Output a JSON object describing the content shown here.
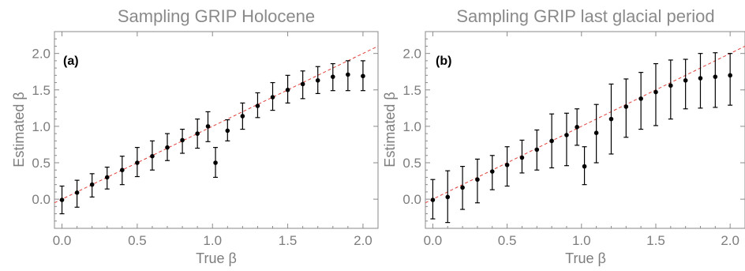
{
  "chart_data": [
    {
      "type": "scatter",
      "title": "Sampling GRIP Holocene",
      "panel_label": "(a)",
      "xlabel": "True β",
      "ylabel": "Estimated β",
      "xlim": [
        -0.05,
        2.1
      ],
      "ylim": [
        -0.4,
        2.3
      ],
      "xticks": [
        "0.0",
        "0.5",
        "1.0",
        "1.5",
        "2.0"
      ],
      "yticks": [
        "0.0",
        "0.5",
        "1.0",
        "1.5",
        "2.0"
      ],
      "reference_line": {
        "slope": 1,
        "intercept": 0,
        "color": "#e0413a",
        "style": "dashed"
      },
      "grid": false,
      "points": [
        {
          "x": 0.0,
          "y": -0.01,
          "lo": -0.2,
          "hi": 0.18
        },
        {
          "x": 0.1,
          "y": 0.09,
          "lo": -0.11,
          "hi": 0.26
        },
        {
          "x": 0.2,
          "y": 0.2,
          "lo": 0.03,
          "hi": 0.35
        },
        {
          "x": 0.3,
          "y": 0.3,
          "lo": 0.14,
          "hi": 0.44
        },
        {
          "x": 0.4,
          "y": 0.4,
          "lo": 0.2,
          "hi": 0.59
        },
        {
          "x": 0.5,
          "y": 0.5,
          "lo": 0.31,
          "hi": 0.71
        },
        {
          "x": 0.6,
          "y": 0.59,
          "lo": 0.4,
          "hi": 0.8
        },
        {
          "x": 0.7,
          "y": 0.71,
          "lo": 0.53,
          "hi": 0.9
        },
        {
          "x": 0.8,
          "y": 0.81,
          "lo": 0.63,
          "hi": 0.96
        },
        {
          "x": 0.9,
          "y": 0.9,
          "lo": 0.7,
          "hi": 1.1
        },
        {
          "x": 0.97,
          "y": 1.0,
          "lo": 0.79,
          "hi": 1.2
        },
        {
          "x": 1.02,
          "y": 0.5,
          "lo": 0.3,
          "hi": 0.71
        },
        {
          "x": 1.1,
          "y": 0.94,
          "lo": 0.8,
          "hi": 1.09
        },
        {
          "x": 1.2,
          "y": 1.14,
          "lo": 0.96,
          "hi": 1.32
        },
        {
          "x": 1.3,
          "y": 1.28,
          "lo": 1.12,
          "hi": 1.46
        },
        {
          "x": 1.4,
          "y": 1.4,
          "lo": 1.22,
          "hi": 1.6
        },
        {
          "x": 1.5,
          "y": 1.5,
          "lo": 1.32,
          "hi": 1.7
        },
        {
          "x": 1.6,
          "y": 1.58,
          "lo": 1.38,
          "hi": 1.76
        },
        {
          "x": 1.7,
          "y": 1.63,
          "lo": 1.45,
          "hi": 1.82
        },
        {
          "x": 1.8,
          "y": 1.68,
          "lo": 1.49,
          "hi": 1.86
        },
        {
          "x": 1.9,
          "y": 1.71,
          "lo": 1.49,
          "hi": 1.9
        },
        {
          "x": 2.0,
          "y": 1.69,
          "lo": 1.49,
          "hi": 1.9
        }
      ]
    },
    {
      "type": "scatter",
      "title": "Sampling GRIP last glacial period",
      "panel_label": "(b)",
      "xlabel": "True β",
      "ylabel": "Estimated β",
      "xlim": [
        -0.05,
        2.1
      ],
      "ylim": [
        -0.4,
        2.3
      ],
      "xticks": [
        "0.0",
        "0.5",
        "1.0",
        "1.5",
        "2.0"
      ],
      "yticks": [
        "0.0",
        "0.5",
        "1.0",
        "1.5",
        "2.0"
      ],
      "reference_line": {
        "slope": 1,
        "intercept": 0,
        "color": "#e0413a",
        "style": "dashed"
      },
      "grid": false,
      "points": [
        {
          "x": 0.0,
          "y": -0.01,
          "lo": -0.27,
          "hi": 0.27
        },
        {
          "x": 0.1,
          "y": 0.03,
          "lo": -0.32,
          "hi": 0.39
        },
        {
          "x": 0.2,
          "y": 0.16,
          "lo": -0.14,
          "hi": 0.45
        },
        {
          "x": 0.3,
          "y": 0.27,
          "lo": -0.05,
          "hi": 0.55
        },
        {
          "x": 0.4,
          "y": 0.38,
          "lo": 0.13,
          "hi": 0.6
        },
        {
          "x": 0.5,
          "y": 0.47,
          "lo": 0.18,
          "hi": 0.72
        },
        {
          "x": 0.6,
          "y": 0.57,
          "lo": 0.36,
          "hi": 0.81
        },
        {
          "x": 0.7,
          "y": 0.68,
          "lo": 0.4,
          "hi": 0.95
        },
        {
          "x": 0.8,
          "y": 0.8,
          "lo": 0.43,
          "hi": 1.17
        },
        {
          "x": 0.9,
          "y": 0.88,
          "lo": 0.46,
          "hi": 1.18
        },
        {
          "x": 0.97,
          "y": 0.99,
          "lo": 0.74,
          "hi": 1.24
        },
        {
          "x": 1.02,
          "y": 0.45,
          "lo": 0.2,
          "hi": 0.72
        },
        {
          "x": 1.1,
          "y": 0.91,
          "lo": 0.5,
          "hi": 1.3
        },
        {
          "x": 1.2,
          "y": 1.1,
          "lo": 0.62,
          "hi": 1.58
        },
        {
          "x": 1.3,
          "y": 1.27,
          "lo": 0.85,
          "hi": 1.65
        },
        {
          "x": 1.4,
          "y": 1.38,
          "lo": 0.96,
          "hi": 1.74
        },
        {
          "x": 1.5,
          "y": 1.47,
          "lo": 1.01,
          "hi": 1.86
        },
        {
          "x": 1.6,
          "y": 1.56,
          "lo": 1.1,
          "hi": 1.91
        },
        {
          "x": 1.7,
          "y": 1.63,
          "lo": 1.24,
          "hi": 1.92
        },
        {
          "x": 1.8,
          "y": 1.66,
          "lo": 1.25,
          "hi": 2.0
        },
        {
          "x": 1.9,
          "y": 1.68,
          "lo": 1.26,
          "hi": 2.01
        },
        {
          "x": 2.0,
          "y": 1.7,
          "lo": 1.29,
          "hi": 2.0
        }
      ]
    }
  ]
}
